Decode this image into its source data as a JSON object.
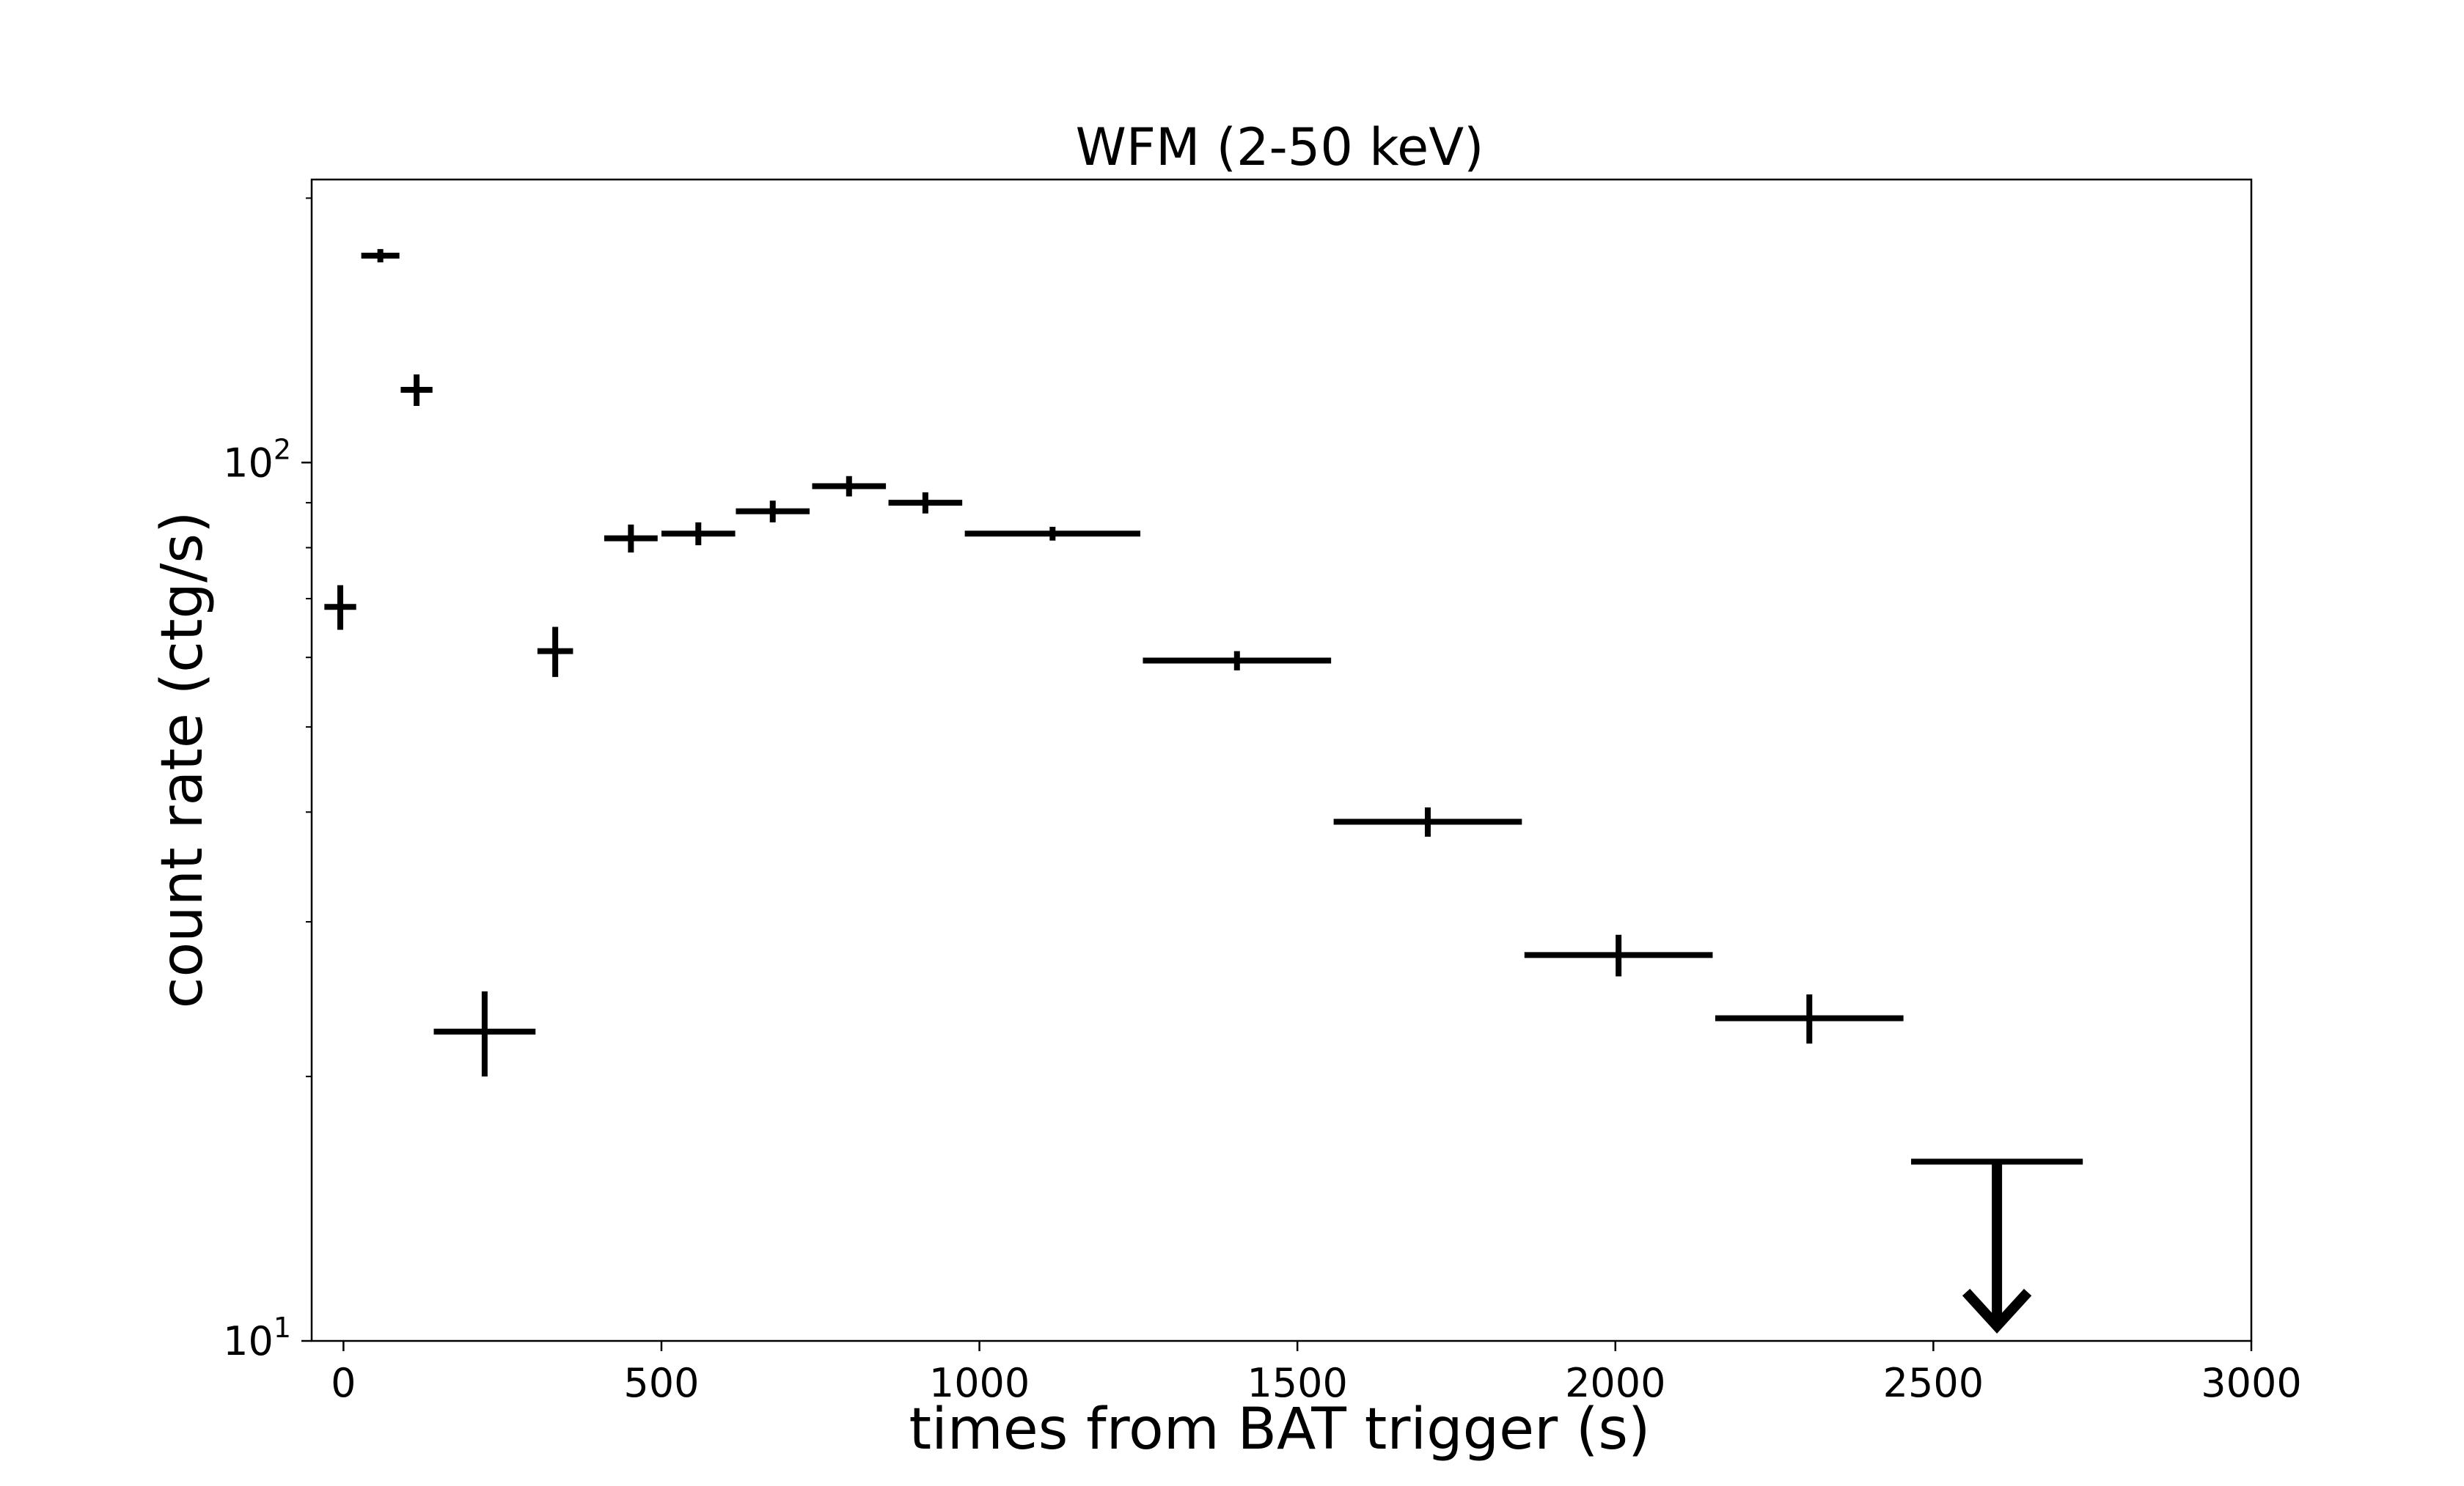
{
  "chart_data": {
    "type": "scatter",
    "title": "WFM (2-50 keV)",
    "xlabel": "times from BAT trigger (s)",
    "ylabel": "count rate (ctg/s)",
    "xlim": [
      -50,
      3000
    ],
    "ylim": [
      10,
      210
    ],
    "yscale": "log",
    "grid": false,
    "xticks": [
      0,
      500,
      1000,
      1500,
      2000,
      2500,
      3000
    ],
    "xtick_labels": [
      "0",
      "500",
      "1000",
      "1500",
      "2000",
      "2500",
      "3000"
    ],
    "yticks": [
      {
        "value": 10,
        "base": "10",
        "exp": "1"
      },
      {
        "value": 100,
        "base": "10",
        "exp": "2"
      }
    ],
    "points": [
      {
        "x": -5,
        "xerr": 25,
        "y": 68.5,
        "yerr_lo": 4,
        "yerr_hi": 4
      },
      {
        "x": 58,
        "xerr": 30,
        "y": 172,
        "yerr_lo": 3,
        "yerr_hi": 3
      },
      {
        "x": 115,
        "xerr": 25,
        "y": 121,
        "yerr_lo": 5,
        "yerr_hi": 5
      },
      {
        "x": 222,
        "xerr": 80,
        "y": 22.5,
        "yerr_lo": 2.5,
        "yerr_hi": 2.5
      },
      {
        "x": 333,
        "xerr": 28,
        "y": 61,
        "yerr_lo": 4,
        "yerr_hi": 4
      },
      {
        "x": 452,
        "xerr": 42,
        "y": 82,
        "yerr_lo": 3,
        "yerr_hi": 3
      },
      {
        "x": 558,
        "xerr": 58,
        "y": 83,
        "yerr_lo": 2.5,
        "yerr_hi": 2.5
      },
      {
        "x": 675,
        "xerr": 58,
        "y": 88,
        "yerr_lo": 2.5,
        "yerr_hi": 2.5
      },
      {
        "x": 795,
        "xerr": 58,
        "y": 94,
        "yerr_lo": 2.5,
        "yerr_hi": 2.5
      },
      {
        "x": 915,
        "xerr": 58,
        "y": 90,
        "yerr_lo": 2.5,
        "yerr_hi": 2.5
      },
      {
        "x": 1115,
        "xerr": 138,
        "y": 83,
        "yerr_lo": 1.5,
        "yerr_hi": 1.5
      },
      {
        "x": 1405,
        "xerr": 148,
        "y": 59.5,
        "yerr_lo": 1.5,
        "yerr_hi": 1.5
      },
      {
        "x": 1705,
        "xerr": 148,
        "y": 39,
        "yerr_lo": 1.5,
        "yerr_hi": 1.5
      },
      {
        "x": 2005,
        "xerr": 148,
        "y": 27.5,
        "yerr_lo": 1.5,
        "yerr_hi": 1.5
      },
      {
        "x": 2305,
        "xerr": 148,
        "y": 23.3,
        "yerr_lo": 1.5,
        "yerr_hi": 1.5
      }
    ],
    "upper_limits": [
      {
        "x": 2600,
        "xerr": 135,
        "y": 16.0,
        "arrow_to": 10.4
      }
    ]
  }
}
